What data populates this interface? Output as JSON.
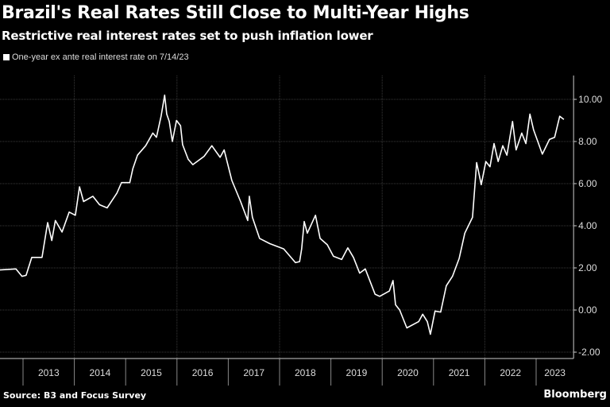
{
  "chart_data": {
    "type": "line",
    "title": "Brazil's Real Rates Still Close to Multi-Year Highs",
    "subtitle": "Restrictive real interest rates set to push inflation lower",
    "legend": [
      "One-year ex ante real interest rate on 7/14/23"
    ],
    "legend_placement": "top-left",
    "source": "Source: B3 and Focus Survey",
    "brand": "Bloomberg",
    "xlabel": "",
    "ylabel": "",
    "x_tick_labels": [
      "2013",
      "2014",
      "2015",
      "2016",
      "2017",
      "2018",
      "2019",
      "2020",
      "2021",
      "2022",
      "2023"
    ],
    "y_tick_labels": [
      "10.00",
      "8.00",
      "6.00",
      "4.00",
      "2.00",
      "0.00",
      "-2.00"
    ],
    "y_ticks": [
      10,
      8,
      6,
      4,
      2,
      0,
      -2
    ],
    "xlim": [
      2012.55,
      2023.73
    ],
    "ylim": [
      -2.3,
      11.2
    ],
    "grid": true,
    "line_color": "#ffffff",
    "series": [
      {
        "name": "One-year ex ante real interest rate on 7/14/23",
        "x": [
          2012.55,
          2012.86,
          2012.98,
          2013.06,
          2013.17,
          2013.37,
          2013.48,
          2013.56,
          2013.63,
          2013.76,
          2013.9,
          2014.02,
          2014.1,
          2014.18,
          2014.36,
          2014.49,
          2014.64,
          2014.83,
          2014.92,
          2015.08,
          2015.14,
          2015.23,
          2015.39,
          2015.53,
          2015.6,
          2015.69,
          2015.76,
          2015.8,
          2015.85,
          2015.91,
          2015.99,
          2016.07,
          2016.11,
          2016.22,
          2016.31,
          2016.53,
          2016.68,
          2016.84,
          2016.92,
          2017.07,
          2017.24,
          2017.38,
          2017.41,
          2017.47,
          2017.61,
          2017.81,
          2018.08,
          2018.31,
          2018.39,
          2018.43,
          2018.48,
          2018.54,
          2018.7,
          2018.79,
          2018.93,
          2019.05,
          2019.21,
          2019.33,
          2019.44,
          2019.56,
          2019.67,
          2019.86,
          2019.95,
          2020.14,
          2020.21,
          2020.26,
          2020.34,
          2020.48,
          2020.71,
          2020.79,
          2020.88,
          2020.94,
          2021.03,
          2021.14,
          2021.25,
          2021.37,
          2021.5,
          2021.61,
          2021.76,
          2021.84,
          2021.93,
          2022.02,
          2022.1,
          2022.18,
          2022.26,
          2022.35,
          2022.43,
          2022.54,
          2022.61,
          2022.72,
          2022.8,
          2022.88,
          2022.95,
          2023.12,
          2023.26,
          2023.36,
          2023.46,
          2023.54
        ],
        "y": [
          1.9,
          1.95,
          1.6,
          1.65,
          2.5,
          2.5,
          4.15,
          3.3,
          4.25,
          3.7,
          4.65,
          4.5,
          5.85,
          5.15,
          5.4,
          5.0,
          4.85,
          5.55,
          6.05,
          6.05,
          6.7,
          7.35,
          7.8,
          8.4,
          8.2,
          9.2,
          10.2,
          9.3,
          8.95,
          8.0,
          9.0,
          8.75,
          7.85,
          7.15,
          6.9,
          7.3,
          7.8,
          7.25,
          7.6,
          6.15,
          5.15,
          4.25,
          5.4,
          4.4,
          3.4,
          3.15,
          2.9,
          2.25,
          2.3,
          2.9,
          4.2,
          3.65,
          4.5,
          3.4,
          3.1,
          2.55,
          2.4,
          2.95,
          2.5,
          1.75,
          1.95,
          0.75,
          0.65,
          0.9,
          1.4,
          0.25,
          0.0,
          -0.85,
          -0.55,
          -0.2,
          -0.55,
          -1.15,
          -0.05,
          -0.1,
          1.15,
          1.6,
          2.45,
          3.65,
          4.4,
          7.0,
          5.95,
          7.05,
          6.8,
          7.9,
          7.05,
          7.8,
          7.35,
          8.95,
          7.6,
          8.4,
          7.9,
          9.3,
          8.55,
          7.4,
          8.1,
          8.2,
          9.2,
          9.05
        ]
      }
    ]
  }
}
